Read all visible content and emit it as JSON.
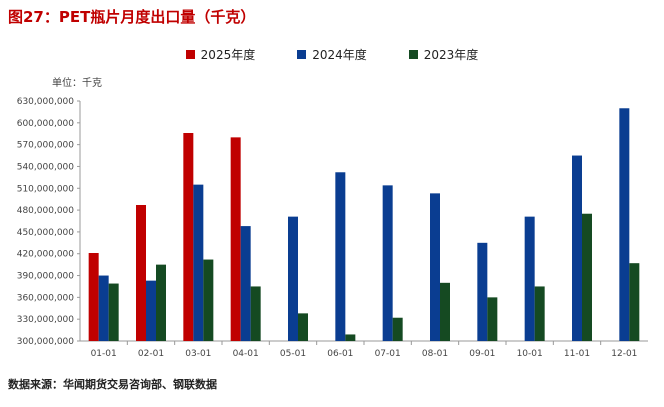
{
  "title": "图27：PET瓶片月度出口量（千克）",
  "unit_label": "单位：千克",
  "source": "数据来源：华闻期货交易咨询部、钢联数据",
  "colors": {
    "2025年度": "#c00000",
    "2024年度": "#0a3d91",
    "2023年度": "#154a22"
  },
  "chart_data": {
    "type": "bar",
    "categories": [
      "01-01",
      "02-01",
      "03-01",
      "04-01",
      "05-01",
      "06-01",
      "07-01",
      "08-01",
      "09-01",
      "10-01",
      "11-01",
      "12-01"
    ],
    "series": [
      {
        "name": "2025年度",
        "values": [
          421000000,
          487000000,
          586000000,
          580000000,
          null,
          null,
          null,
          null,
          null,
          null,
          null,
          null
        ]
      },
      {
        "name": "2024年度",
        "values": [
          390000000,
          383000000,
          515000000,
          458000000,
          471000000,
          532000000,
          514000000,
          503000000,
          435000000,
          471000000,
          555000000,
          620000000
        ]
      },
      {
        "name": "2023年度",
        "values": [
          379000000,
          405000000,
          412000000,
          375000000,
          338000000,
          309000000,
          332000000,
          380000000,
          360000000,
          375000000,
          475000000,
          407000000
        ]
      }
    ],
    "yticks": [
      "300,000,000",
      "330,000,000",
      "360,000,000",
      "390,000,000",
      "420,000,000",
      "450,000,000",
      "480,000,000",
      "510,000,000",
      "540,000,000",
      "570,000,000",
      "600,000,000",
      "630,000,000"
    ],
    "ylim": [
      300000000,
      630000000
    ],
    "legend_position": "top-center",
    "grid": false
  }
}
